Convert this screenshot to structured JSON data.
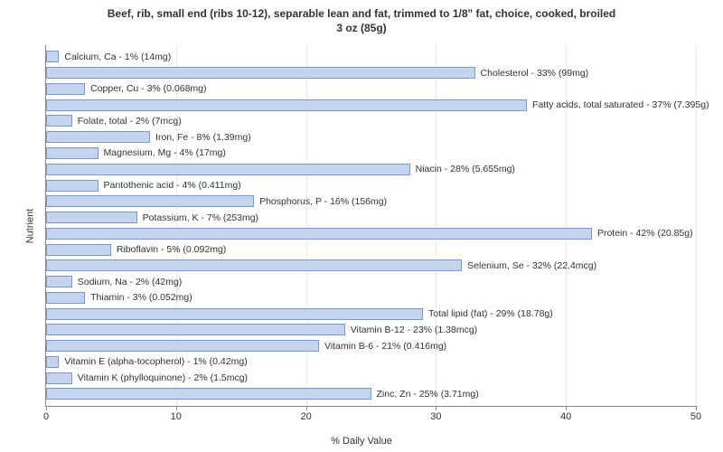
{
  "title_line1": "Beef, rib, small end (ribs 10-12), separable lean and fat, trimmed to 1/8\" fat, choice, cooked, broiled",
  "title_line2": "3 oz (85g)",
  "y_axis_label": "Nutrient",
  "x_axis_label": "% Daily Value",
  "chart": {
    "type": "bar-horizontal",
    "xlim": [
      0,
      50
    ],
    "xtick_step": 10,
    "bar_color": "#c4d4ef",
    "bar_border": "#7a9acc",
    "grid_color": "#e8e8e8",
    "background_color": "#ffffff",
    "title_fontsize": 12,
    "label_fontsize": 11,
    "bar_label_fontsize": 10.5
  },
  "x_ticks": [
    {
      "value": 0,
      "label": "0"
    },
    {
      "value": 10,
      "label": "10"
    },
    {
      "value": 20,
      "label": "20"
    },
    {
      "value": 30,
      "label": "30"
    },
    {
      "value": 40,
      "label": "40"
    },
    {
      "value": 50,
      "label": "50"
    }
  ],
  "nutrients": [
    {
      "label": "Calcium, Ca - 1% (14mg)",
      "value": 1
    },
    {
      "label": "Cholesterol - 33% (99mg)",
      "value": 33
    },
    {
      "label": "Copper, Cu - 3% (0.068mg)",
      "value": 3
    },
    {
      "label": "Fatty acids, total saturated - 37% (7.395g)",
      "value": 37
    },
    {
      "label": "Folate, total - 2% (7mcg)",
      "value": 2
    },
    {
      "label": "Iron, Fe - 8% (1.39mg)",
      "value": 8
    },
    {
      "label": "Magnesium, Mg - 4% (17mg)",
      "value": 4
    },
    {
      "label": "Niacin - 28% (5.655mg)",
      "value": 28
    },
    {
      "label": "Pantothenic acid - 4% (0.411mg)",
      "value": 4
    },
    {
      "label": "Phosphorus, P - 16% (156mg)",
      "value": 16
    },
    {
      "label": "Potassium, K - 7% (253mg)",
      "value": 7
    },
    {
      "label": "Protein - 42% (20.85g)",
      "value": 42
    },
    {
      "label": "Riboflavin - 5% (0.092mg)",
      "value": 5
    },
    {
      "label": "Selenium, Se - 32% (22.4mcg)",
      "value": 32
    },
    {
      "label": "Sodium, Na - 2% (42mg)",
      "value": 2
    },
    {
      "label": "Thiamin - 3% (0.052mg)",
      "value": 3
    },
    {
      "label": "Total lipid (fat) - 29% (18.78g)",
      "value": 29
    },
    {
      "label": "Vitamin B-12 - 23% (1.38mcg)",
      "value": 23
    },
    {
      "label": "Vitamin B-6 - 21% (0.416mg)",
      "value": 21
    },
    {
      "label": "Vitamin E (alpha-tocopherol) - 1% (0.42mg)",
      "value": 1
    },
    {
      "label": "Vitamin K (phylloquinone) - 2% (1.5mcg)",
      "value": 2
    },
    {
      "label": "Zinc, Zn - 25% (3.71mg)",
      "value": 25
    }
  ]
}
